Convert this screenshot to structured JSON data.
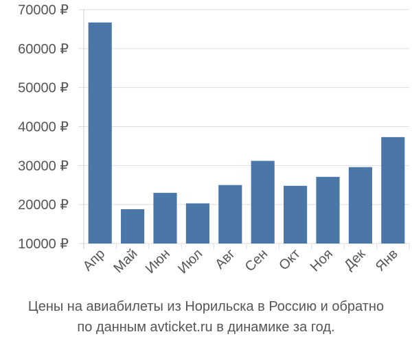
{
  "caption": {
    "line1": "Цены на авиабилеты из Норильска в Россию и обратно",
    "line2": "по данным avticket.ru в динамике за год."
  },
  "colors": {
    "bar": "#4a76a8",
    "grid": "#dddddd",
    "text": "#555555"
  },
  "chart_data": {
    "type": "bar",
    "categories": [
      "Апр",
      "Май",
      "Июн",
      "Июл",
      "Авг",
      "Сен",
      "Окт",
      "Ноя",
      "Дек",
      "Янв"
    ],
    "values": [
      66700,
      18800,
      23000,
      20300,
      25000,
      31200,
      24800,
      27100,
      29600,
      37300
    ],
    "ylim": [
      10000,
      70000
    ],
    "yticks": [
      10000,
      20000,
      30000,
      40000,
      50000,
      60000,
      70000
    ],
    "ytick_labels": [
      "10000 ₽",
      "20000 ₽",
      "30000 ₽",
      "40000 ₽",
      "50000 ₽",
      "60000 ₽",
      "70000 ₽"
    ],
    "grid": true,
    "title": "",
    "xlabel": "",
    "ylabel": ""
  }
}
